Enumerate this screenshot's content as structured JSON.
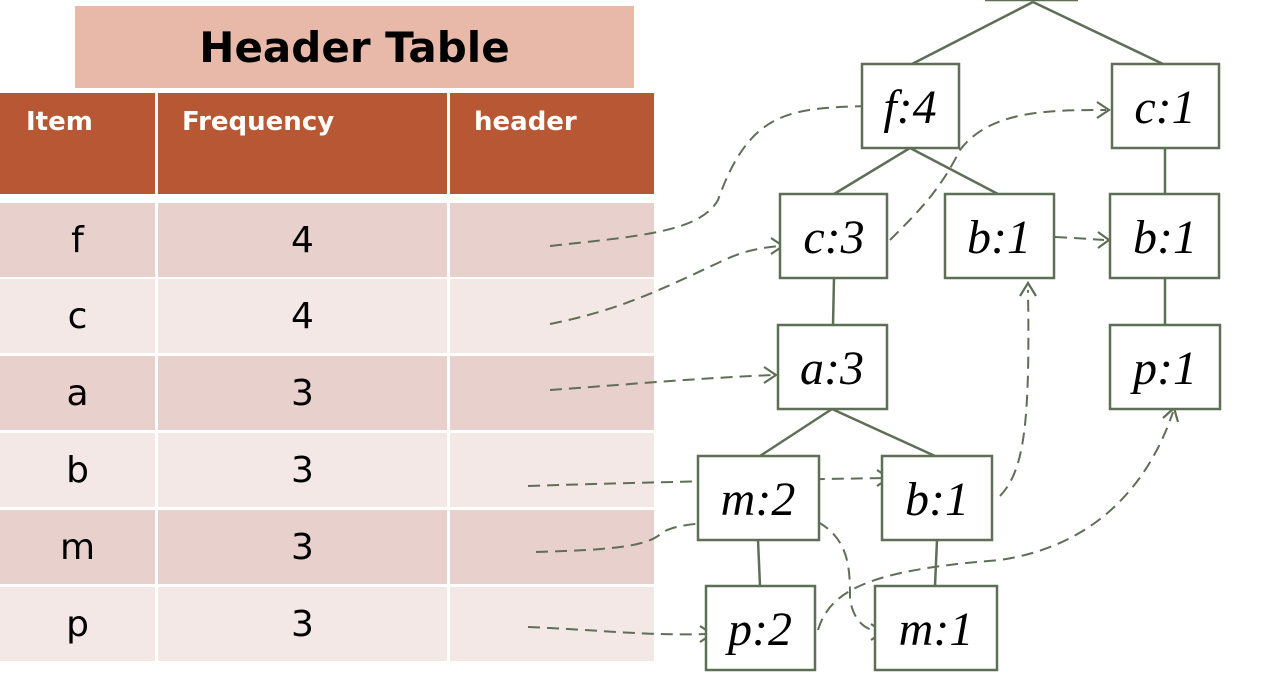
{
  "header_table": {
    "title": "Header Table",
    "columns": [
      "Item",
      "Frequency",
      "header"
    ],
    "rows": [
      {
        "item": "f",
        "frequency": "4"
      },
      {
        "item": "c",
        "frequency": "4"
      },
      {
        "item": "a",
        "frequency": "3"
      },
      {
        "item": "b",
        "frequency": "3"
      },
      {
        "item": "m",
        "frequency": "3"
      },
      {
        "item": "p",
        "frequency": "3"
      }
    ]
  },
  "tree": {
    "nodes": {
      "f4": "f:4",
      "c1_top": "c:1",
      "c3": "c:3",
      "b1_mid": "b:1",
      "b1_right": "b:1",
      "a3": "a:3",
      "p1_right": "p:1",
      "m2": "m:2",
      "b1_low": "b:1",
      "p2": "p:2",
      "m1": "m:1"
    }
  },
  "colors": {
    "title_bg": "#e8b8a8",
    "header_bg": "#b85733",
    "row_odd": "#e8d0cd",
    "row_even": "#f3e8e6",
    "line": "#5f6f57"
  }
}
